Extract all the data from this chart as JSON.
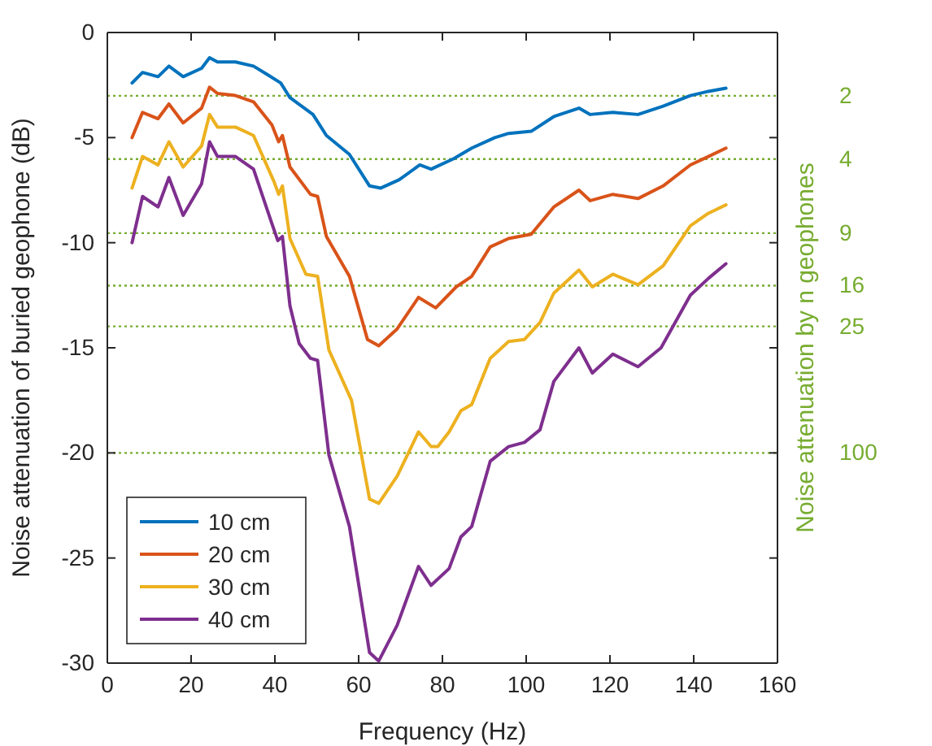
{
  "chart_data": {
    "type": "line",
    "xlabel": "Frequency (Hz)",
    "ylabel": "Noise attenuation of buried geophone (dB)",
    "y2label": "Noise attenuation by n geophones",
    "xlim": [
      0,
      160
    ],
    "xticks": [
      0,
      20,
      40,
      60,
      80,
      100,
      120,
      140,
      160
    ],
    "ylim": [
      -30,
      0
    ],
    "yticks": [
      -30,
      -25,
      -20,
      -15,
      -10,
      -5,
      0
    ],
    "y2lim": [
      1000,
      1
    ],
    "y2ticks": [
      2,
      4,
      9,
      16,
      25,
      100
    ],
    "log": "y2",
    "ref_lines": [
      {
        "axis": "y2",
        "value": 2,
        "color": "#77ac30",
        "line_style": "dotted"
      },
      {
        "axis": "y2",
        "value": 4,
        "color": "#77ac30",
        "line_style": "dotted"
      },
      {
        "axis": "y2",
        "value": 9,
        "color": "#77ac30",
        "line_style": "dotted"
      },
      {
        "axis": "y2",
        "value": 16,
        "color": "#77ac30",
        "line_style": "dotted"
      },
      {
        "axis": "y2",
        "value": 25,
        "color": "#77ac30",
        "line_style": "dotted"
      },
      {
        "axis": "y2",
        "value": 100,
        "color": "#77ac30",
        "line_style": "dotted"
      }
    ],
    "legend": "bottom left",
    "grid": false,
    "line_style": "solid",
    "marker": "none",
    "series": [
      {
        "name": "10 cm",
        "color": "#0072bd",
        "x": [
          5.9,
          8.4,
          12.1,
          14.7,
          18.1,
          22.5,
          24.4,
          26.3,
          30.6,
          34.9,
          38.2,
          41.4,
          43.6,
          49.1,
          52.3,
          57.8,
          62.6,
          65.3,
          69.7,
          74.6,
          77.3,
          82.7,
          87,
          92.5,
          95.8,
          101.2,
          106.6,
          112.6,
          115.3,
          120.7,
          126.7,
          132.7,
          139.2,
          143.5,
          147.7
        ],
        "values": [
          -2.4,
          -1.9,
          -2.1,
          -1.6,
          -2.1,
          -1.7,
          -1.2,
          -1.4,
          -1.4,
          -1.6,
          -2.0,
          -2.4,
          -3.1,
          -3.9,
          -4.9,
          -5.8,
          -7.3,
          -7.4,
          -7.0,
          -6.3,
          -6.5,
          -6.0,
          -5.5,
          -5.0,
          -4.8,
          -4.7,
          -4.0,
          -3.6,
          -3.9,
          -3.8,
          -3.9,
          -3.5,
          -3.0,
          -2.8,
          -2.65
        ]
      },
      {
        "name": "20 cm",
        "color": "#d95319",
        "x": [
          5.9,
          8.4,
          12.1,
          14.7,
          18.1,
          22.5,
          24.4,
          26.3,
          30.6,
          34.9,
          39.3,
          40.9,
          41.8,
          43.6,
          48.5,
          50.2,
          52.3,
          57.8,
          62.1,
          64.8,
          69.2,
          74.3,
          78.4,
          83.3,
          87,
          91.4,
          95.8,
          101.2,
          106.6,
          112.6,
          115.3,
          120.7,
          126.7,
          132.7,
          139.2,
          143.5,
          147.7
        ],
        "values": [
          -5.0,
          -3.8,
          -4.1,
          -3.4,
          -4.3,
          -3.6,
          -2.6,
          -2.9,
          -3.0,
          -3.3,
          -4.4,
          -5.2,
          -4.9,
          -6.4,
          -7.7,
          -7.8,
          -9.7,
          -11.6,
          -14.6,
          -14.9,
          -14.1,
          -12.6,
          -13.1,
          -12.1,
          -11.6,
          -10.2,
          -9.8,
          -9.6,
          -8.3,
          -7.5,
          -8.0,
          -7.7,
          -7.9,
          -7.3,
          -6.3,
          -5.9,
          -5.5
        ]
      },
      {
        "name": "30 cm",
        "color": "#edb120",
        "x": [
          5.9,
          8.4,
          12.1,
          14.7,
          18.1,
          22.5,
          24.4,
          26.3,
          30.6,
          34.9,
          39.8,
          40.9,
          41.8,
          43.6,
          47.4,
          50.2,
          52.9,
          58.3,
          62.6,
          64.8,
          69.2,
          74.3,
          77.3,
          78.9,
          81.6,
          84.4,
          87,
          91.4,
          95.8,
          99.6,
          103.3,
          106.6,
          112.6,
          115.8,
          120.7,
          126.7,
          132.7,
          139.2,
          143.5,
          147.7
        ],
        "values": [
          -7.4,
          -5.9,
          -6.3,
          -5.2,
          -6.4,
          -5.4,
          -3.9,
          -4.5,
          -4.5,
          -4.9,
          -7.1,
          -7.7,
          -7.3,
          -9.8,
          -11.5,
          -11.6,
          -15.1,
          -17.5,
          -22.2,
          -22.4,
          -21.1,
          -19.0,
          -19.7,
          -19.7,
          -19.0,
          -18.0,
          -17.7,
          -15.5,
          -14.7,
          -14.6,
          -13.8,
          -12.4,
          -11.3,
          -12.1,
          -11.5,
          -12.0,
          -11.1,
          -9.2,
          -8.6,
          -8.2
        ]
      },
      {
        "name": "40 cm",
        "color": "#7e2f8e",
        "x": [
          5.9,
          8.4,
          12.1,
          14.7,
          18.1,
          22.5,
          24.4,
          26.3,
          30.6,
          34.9,
          39.3,
          40.7,
          41.8,
          43.6,
          45.8,
          48.5,
          50.2,
          52.9,
          57.8,
          62.6,
          64.8,
          69.2,
          74.3,
          77.3,
          81.6,
          84.4,
          87,
          91.4,
          95.8,
          99.6,
          103.3,
          106.6,
          112.6,
          115.8,
          120.7,
          126.7,
          132.2,
          139.2,
          143.5,
          147.7
        ],
        "values": [
          -10.0,
          -7.8,
          -8.3,
          -6.9,
          -8.7,
          -7.2,
          -5.2,
          -5.9,
          -5.9,
          -6.5,
          -9.1,
          -9.9,
          -9.7,
          -13.0,
          -14.8,
          -15.5,
          -15.6,
          -20.1,
          -23.5,
          -29.5,
          -29.9,
          -28.2,
          -25.4,
          -26.3,
          -25.5,
          -24.0,
          -23.5,
          -20.4,
          -19.7,
          -19.5,
          -18.9,
          -16.6,
          -15.0,
          -16.2,
          -15.3,
          -15.9,
          -15.0,
          -12.5,
          -11.7,
          -11.0
        ]
      }
    ]
  }
}
